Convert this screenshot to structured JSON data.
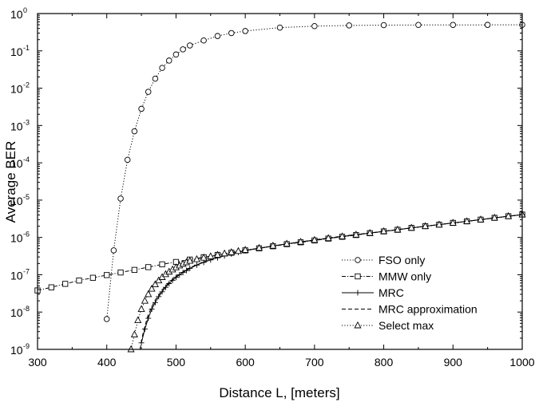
{
  "chart_data": {
    "type": "line",
    "xlabel": "Distance L, [meters]",
    "ylabel": "Average BER",
    "xlim": [
      300,
      1000
    ],
    "ylim": [
      1e-09,
      1
    ],
    "yscale": "log",
    "x_ticks": [
      "300",
      "400",
      "500",
      "600",
      "700",
      "800",
      "900",
      "1000"
    ],
    "y_ticks": [
      {
        "base": "10",
        "exp": "-9"
      },
      {
        "base": "10",
        "exp": "-8"
      },
      {
        "base": "10",
        "exp": "-7"
      },
      {
        "base": "10",
        "exp": "-6"
      },
      {
        "base": "10",
        "exp": "-5"
      },
      {
        "base": "10",
        "exp": "-4"
      },
      {
        "base": "10",
        "exp": "-3"
      },
      {
        "base": "10",
        "exp": "-2"
      },
      {
        "base": "10",
        "exp": "-1"
      },
      {
        "base": "10",
        "exp": "0"
      }
    ],
    "grid": false,
    "legend_position": "bottom-right",
    "series": [
      {
        "name": "FSO only",
        "line": "dotted",
        "marker": "circle",
        "x": [
          400,
          410,
          420,
          430,
          440,
          450,
          460,
          470,
          480,
          490,
          500,
          510,
          520,
          540,
          560,
          580,
          600,
          650,
          700,
          750,
          800,
          850,
          900,
          950,
          1000
        ],
        "y": [
          6.5e-09,
          4.5e-07,
          1.1e-05,
          0.00012,
          0.0007,
          0.0028,
          0.008,
          0.018,
          0.035,
          0.055,
          0.08,
          0.11,
          0.14,
          0.19,
          0.25,
          0.3,
          0.34,
          0.42,
          0.46,
          0.48,
          0.49,
          0.495,
          0.497,
          0.498,
          0.499
        ]
      },
      {
        "name": "MMW only",
        "line": "dash-dot",
        "marker": "square",
        "x": [
          300,
          320,
          340,
          360,
          380,
          400,
          420,
          440,
          460,
          480,
          500,
          520,
          540,
          560,
          580,
          600,
          620,
          640,
          660,
          680,
          700,
          720,
          740,
          760,
          780,
          800,
          820,
          840,
          860,
          880,
          900,
          920,
          940,
          960,
          980,
          1000
        ],
        "y": [
          3.8e-08,
          4.6e-08,
          5.7e-08,
          7e-08,
          8.3e-08,
          9.8e-08,
          1.15e-07,
          1.35e-07,
          1.6e-07,
          1.9e-07,
          2.2e-07,
          2.55e-07,
          2.95e-07,
          3.4e-07,
          3.9e-07,
          4.5e-07,
          5.1e-07,
          5.8e-07,
          6.6e-07,
          7.4e-07,
          8.3e-07,
          9.3e-07,
          1.04e-06,
          1.16e-06,
          1.3e-06,
          1.45e-06,
          1.6e-06,
          1.8e-06,
          2e-06,
          2.2e-06,
          2.45e-06,
          2.7e-06,
          3e-06,
          3.35e-06,
          3.7e-06,
          4.1e-06
        ]
      },
      {
        "name": "MRC",
        "line": "solid",
        "marker": "plus",
        "x": [
          450,
          455,
          460,
          465,
          470,
          475,
          480,
          485,
          490,
          495,
          500,
          505,
          510,
          515,
          520,
          530,
          540,
          550,
          560,
          570,
          580,
          590,
          600,
          620,
          640,
          660,
          680,
          700,
          720,
          740,
          760,
          780,
          800,
          820,
          840,
          860,
          880,
          900,
          920,
          940,
          960,
          980,
          1000
        ],
        "y": [
          1.5e-09,
          3.5e-09,
          6.8e-09,
          1.2e-08,
          1.8e-08,
          2.6e-08,
          3.5e-08,
          4.6e-08,
          5.8e-08,
          7.1e-08,
          8.5e-08,
          1e-07,
          1.15e-07,
          1.3e-07,
          1.48e-07,
          1.82e-07,
          2.15e-07,
          2.5e-07,
          2.85e-07,
          3.2e-07,
          3.6e-07,
          4e-07,
          4.4e-07,
          5.1e-07,
          5.9e-07,
          6.7e-07,
          7.6e-07,
          8.5e-07,
          9.5e-07,
          1.06e-06,
          1.18e-06,
          1.31e-06,
          1.46e-06,
          1.61e-06,
          1.8e-06,
          2e-06,
          2.2e-06,
          2.45e-06,
          2.7e-06,
          3e-06,
          3.35e-06,
          3.7e-06,
          4.1e-06
        ]
      },
      {
        "name": "MRC approximation",
        "line": "dashed",
        "marker": "none",
        "x": [
          448,
          452,
          456,
          460,
          465,
          470,
          480,
          490,
          500,
          520,
          540,
          560,
          580,
          600,
          650,
          700,
          750,
          800,
          850,
          900,
          950,
          1000
        ],
        "y": [
          1e-09,
          2.5e-09,
          4.8e-09,
          8.5e-09,
          1.4e-08,
          2.1e-08,
          3.9e-08,
          6.3e-08,
          9e-08,
          1.55e-07,
          2.2e-07,
          2.9e-07,
          3.65e-07,
          4.45e-07,
          6.3e-07,
          8.6e-07,
          1.14e-06,
          1.46e-06,
          1.9e-06,
          2.45e-06,
          3.15e-06,
          4.1e-06
        ]
      },
      {
        "name": "Select max",
        "line": "dotted",
        "marker": "triangle",
        "x": [
          435,
          440,
          445,
          450,
          455,
          460,
          465,
          470,
          475,
          480,
          485,
          490,
          495,
          500,
          505,
          510,
          515,
          520,
          530,
          540,
          550,
          560,
          570,
          580,
          590,
          600,
          620,
          640,
          660,
          680,
          700,
          720,
          740,
          760,
          780,
          800,
          820,
          840,
          860,
          880,
          900,
          920,
          940,
          960,
          980,
          1000
        ],
        "y": [
          1e-09,
          2.5e-09,
          6e-09,
          1.2e-08,
          2e-08,
          3e-08,
          4.2e-08,
          5.5e-08,
          7e-08,
          8.6e-08,
          1.03e-07,
          1.2e-07,
          1.38e-07,
          1.57e-07,
          1.76e-07,
          1.95e-07,
          2.15e-07,
          2.35e-07,
          2.6e-07,
          2.85e-07,
          3.1e-07,
          3.4e-07,
          3.7e-07,
          4e-07,
          4.3e-07,
          4.6e-07,
          5.2e-07,
          5.95e-07,
          6.75e-07,
          7.6e-07,
          8.5e-07,
          9.5e-07,
          1.06e-06,
          1.18e-06,
          1.31e-06,
          1.46e-06,
          1.61e-06,
          1.8e-06,
          2e-06,
          2.2e-06,
          2.45e-06,
          2.7e-06,
          3e-06,
          3.35e-06,
          3.7e-06,
          4.1e-06
        ]
      }
    ]
  }
}
